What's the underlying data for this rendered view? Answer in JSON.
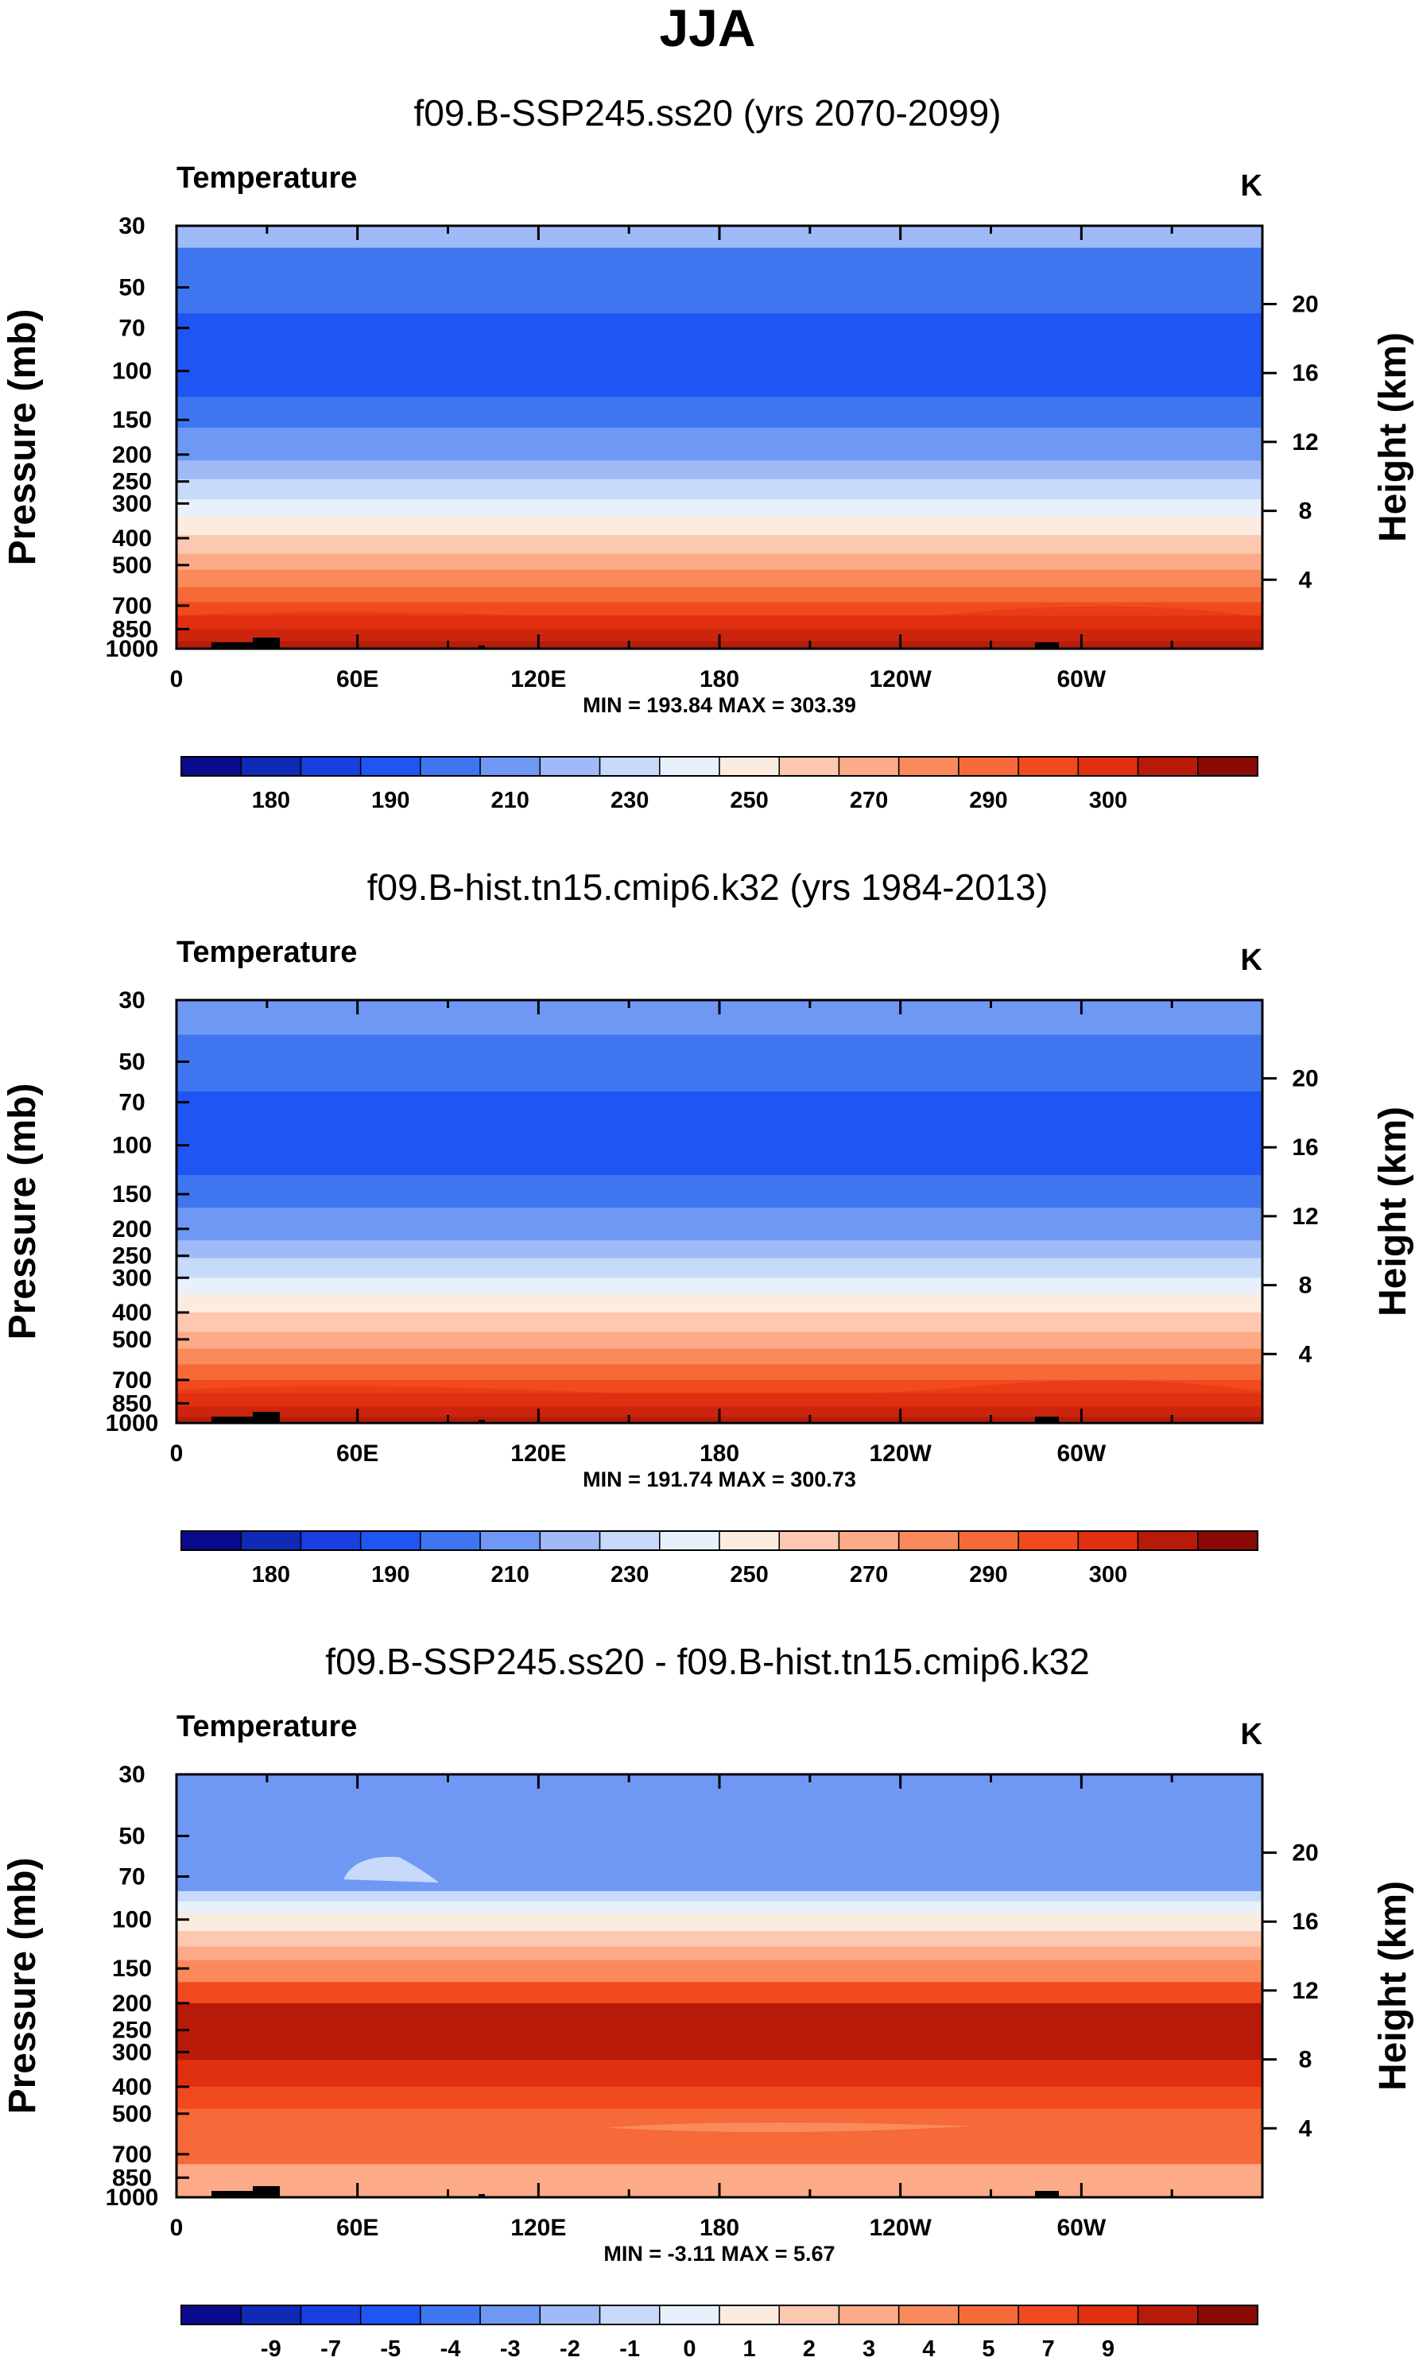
{
  "figure_title": "JJA",
  "chart_data": [
    {
      "type": "heatmap",
      "title": "f09.B-SSP245.ss20 (yrs 2070-2099)",
      "variable": "Temperature",
      "units": "K",
      "ylabel": "Pressure (mb)",
      "ylabel_right": "Height (km)",
      "pressure_ticks": [
        "30",
        "50",
        "70",
        "100",
        "150",
        "200",
        "250",
        "300",
        "400",
        "500",
        "700",
        "850",
        "1000"
      ],
      "height_ticks": [
        "20",
        "16",
        "12",
        "8",
        "4"
      ],
      "x_ticks": [
        "0",
        "60E",
        "120E",
        "180",
        "120W",
        "60W"
      ],
      "min_max": "MIN = 193.84   MAX = 303.39",
      "colorbar_labels": [
        "180",
        "190",
        "210",
        "230",
        "250",
        "270",
        "290",
        "300"
      ],
      "colorbar_colors": [
        "#0a0a8c",
        "#0f2ab4",
        "#1a3fe0",
        "#1f55f2",
        "#3f76f0",
        "#6f98f5",
        "#9fbaf7",
        "#c8dafa",
        "#e8f0fc",
        "#fcece0",
        "#fcc8b0",
        "#fcaa88",
        "#fa8a5c",
        "#f56a38",
        "#f04a1e",
        "#e03010",
        "#b81a0a",
        "#8a0a06"
      ],
      "band_edges": [
        30,
        36,
        62,
        124,
        160,
        210,
        245,
        290,
        335,
        390,
        455,
        520,
        600,
        680,
        760,
        850,
        940,
        1000
      ],
      "band_levels": [
        6,
        4,
        3,
        4,
        5,
        6,
        7,
        8,
        9,
        10,
        11,
        12,
        13,
        14,
        15,
        16,
        17
      ],
      "min": 193.84,
      "max": 303.39
    },
    {
      "type": "heatmap",
      "title": "f09.B-hist.tn15.cmip6.k32 (yrs 1984-2013)",
      "variable": "Temperature",
      "units": "K",
      "ylabel": "Pressure (mb)",
      "ylabel_right": "Height (km)",
      "pressure_ticks": [
        "30",
        "50",
        "70",
        "100",
        "150",
        "200",
        "250",
        "300",
        "400",
        "500",
        "700",
        "850",
        "1000"
      ],
      "height_ticks": [
        "20",
        "16",
        "12",
        "8",
        "4"
      ],
      "x_ticks": [
        "0",
        "60E",
        "120E",
        "180",
        "120W",
        "60W"
      ],
      "min_max": "MIN = 191.74   MAX = 300.73",
      "colorbar_labels": [
        "180",
        "190",
        "210",
        "230",
        "250",
        "270",
        "290",
        "300"
      ],
      "colorbar_colors": [
        "#0a0a8c",
        "#0f2ab4",
        "#1a3fe0",
        "#1f55f2",
        "#3f76f0",
        "#6f98f5",
        "#9fbaf7",
        "#c8dafa",
        "#e8f0fc",
        "#fcece0",
        "#fcc8b0",
        "#fcaa88",
        "#fa8a5c",
        "#f56a38",
        "#f04a1e",
        "#e03010",
        "#b81a0a",
        "#8a0a06"
      ],
      "band_edges": [
        30,
        40,
        64,
        128,
        168,
        220,
        255,
        300,
        345,
        400,
        470,
        540,
        615,
        700,
        780,
        870,
        950,
        1000
      ],
      "band_levels": [
        5,
        4,
        3,
        4,
        5,
        6,
        7,
        8,
        9,
        10,
        11,
        12,
        13,
        14,
        15,
        16,
        17
      ],
      "min": 191.74,
      "max": 300.73
    },
    {
      "type": "heatmap",
      "title": "f09.B-SSP245.ss20 - f09.B-hist.tn15.cmip6.k32",
      "variable": "Temperature",
      "units": "K",
      "ylabel": "Pressure (mb)",
      "ylabel_right": "Height (km)",
      "pressure_ticks": [
        "30",
        "50",
        "70",
        "100",
        "150",
        "200",
        "250",
        "300",
        "400",
        "500",
        "700",
        "850",
        "1000"
      ],
      "height_ticks": [
        "20",
        "16",
        "12",
        "8",
        "4"
      ],
      "x_ticks": [
        "0",
        "60E",
        "120E",
        "180",
        "120W",
        "60W"
      ],
      "min_max": "MIN =  -3.11   MAX =   5.67",
      "colorbar_labels": [
        "-9",
        "-7",
        "-5",
        "-4",
        "-3",
        "-2",
        "-1",
        "0",
        "1",
        "2",
        "3",
        "4",
        "5",
        "7",
        "9"
      ],
      "colorbar_colors": [
        "#0a0a8c",
        "#0f2ab4",
        "#1a3fe0",
        "#1f55f2",
        "#3f76f0",
        "#6f98f5",
        "#9fbaf7",
        "#c8dafa",
        "#e8f0fc",
        "#fcece0",
        "#fcc8b0",
        "#fcaa88",
        "#fa8a5c",
        "#f56a38",
        "#f04a1e",
        "#e03010",
        "#b81a0a",
        "#8a0a06"
      ],
      "band_edges": [
        30,
        79,
        86,
        95,
        110,
        125,
        140,
        168,
        200,
        320,
        400,
        480,
        760,
        1000
      ],
      "band_levels": [
        5,
        7,
        8,
        9,
        10,
        11,
        12,
        14,
        16,
        15,
        14,
        13,
        11
      ],
      "min": -3.11,
      "max": 5.67
    }
  ]
}
